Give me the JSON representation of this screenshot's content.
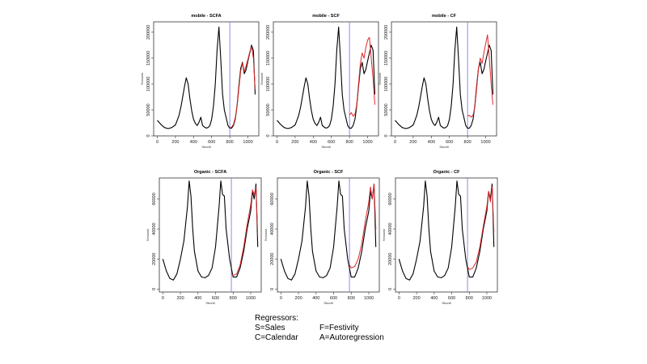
{
  "x_ticks": [
    0,
    200,
    400,
    600,
    800,
    1000
  ],
  "xlabel": "Sboriti",
  "ylabel": "Sessioni",
  "chart_data": [
    {
      "type": "line",
      "title": "mobile  -  SCFA",
      "ylim": [
        0,
        220000
      ],
      "xlim": [
        -40,
        1120
      ],
      "y_ticks": [
        0,
        50000,
        100000,
        150000,
        200000
      ],
      "cutoff_x": 800,
      "series": [
        {
          "role": "actual",
          "x": [
            0,
            40,
            80,
            120,
            160,
            200,
            220,
            240,
            260,
            280,
            300,
            320,
            340,
            360,
            380,
            400,
            420,
            440,
            460,
            480,
            500,
            520,
            540,
            560,
            580,
            600,
            620,
            640,
            660,
            680,
            700,
            720,
            740,
            760,
            780,
            800,
            820,
            840,
            860,
            880,
            900,
            920,
            940,
            960,
            980,
            1000,
            1020,
            1040,
            1060,
            1080
          ],
          "values": [
            30000,
            22000,
            16000,
            14000,
            16000,
            21000,
            30000,
            40000,
            55000,
            75000,
            95000,
            112000,
            100000,
            72000,
            48000,
            32000,
            24000,
            20000,
            26000,
            36000,
            20000,
            17000,
            15000,
            16000,
            20000,
            32000,
            58000,
            100000,
            165000,
            210000,
            150000,
            80000,
            50000,
            35000,
            20000,
            15000,
            15000,
            20000,
            32000,
            58000,
            95000,
            130000,
            142000,
            120000,
            128000,
            145000,
            160000,
            175000,
            165000,
            80000
          ]
        },
        {
          "role": "forecast",
          "x": [
            800,
            820,
            840,
            860,
            880,
            900,
            920,
            940,
            960,
            980,
            1000,
            1020,
            1040,
            1060,
            1080
          ],
          "values": [
            15000,
            17000,
            22000,
            35000,
            56000,
            90000,
            125000,
            140000,
            125000,
            135000,
            148000,
            162000,
            172000,
            150000,
            90000
          ]
        }
      ]
    },
    {
      "type": "line",
      "title": "mobile  -  SCF",
      "ylim": [
        0,
        220000
      ],
      "xlim": [
        -40,
        1120
      ],
      "y_ticks": [
        0,
        50000,
        100000,
        150000,
        200000
      ],
      "cutoff_x": 800,
      "series": [
        {
          "role": "actual",
          "x": [
            0,
            40,
            80,
            120,
            160,
            200,
            220,
            240,
            260,
            280,
            300,
            320,
            340,
            360,
            380,
            400,
            420,
            440,
            460,
            480,
            500,
            520,
            540,
            560,
            580,
            600,
            620,
            640,
            660,
            680,
            700,
            720,
            740,
            760,
            780,
            800,
            820,
            840,
            860,
            880,
            900,
            920,
            940,
            960,
            980,
            1000,
            1020,
            1040,
            1060,
            1080
          ],
          "values": [
            30000,
            22000,
            16000,
            14000,
            16000,
            21000,
            30000,
            40000,
            55000,
            75000,
            95000,
            112000,
            100000,
            72000,
            48000,
            32000,
            24000,
            20000,
            26000,
            36000,
            20000,
            17000,
            15000,
            16000,
            20000,
            32000,
            58000,
            100000,
            165000,
            210000,
            150000,
            80000,
            50000,
            35000,
            20000,
            15000,
            15000,
            20000,
            32000,
            58000,
            95000,
            130000,
            142000,
            120000,
            128000,
            145000,
            160000,
            175000,
            165000,
            80000
          ]
        },
        {
          "role": "forecast",
          "x": [
            800,
            820,
            840,
            860,
            880,
            900,
            920,
            940,
            960,
            980,
            1000,
            1020,
            1040,
            1060,
            1080
          ],
          "values": [
            40000,
            45000,
            38000,
            42000,
            60000,
            100000,
            140000,
            160000,
            150000,
            170000,
            185000,
            190000,
            150000,
            110000,
            60000
          ]
        }
      ]
    },
    {
      "type": "line",
      "title": "mobile  -  CF",
      "ylim": [
        0,
        220000
      ],
      "xlim": [
        -40,
        1120
      ],
      "y_ticks": [
        0,
        50000,
        100000,
        150000,
        200000
      ],
      "cutoff_x": 800,
      "series": [
        {
          "role": "actual",
          "x": [
            0,
            40,
            80,
            120,
            160,
            200,
            220,
            240,
            260,
            280,
            300,
            320,
            340,
            360,
            380,
            400,
            420,
            440,
            460,
            480,
            500,
            520,
            540,
            560,
            580,
            600,
            620,
            640,
            660,
            680,
            700,
            720,
            740,
            760,
            780,
            800,
            820,
            840,
            860,
            880,
            900,
            920,
            940,
            960,
            980,
            1000,
            1020,
            1040,
            1060,
            1080
          ],
          "values": [
            30000,
            22000,
            16000,
            14000,
            16000,
            21000,
            30000,
            40000,
            55000,
            75000,
            95000,
            112000,
            100000,
            72000,
            48000,
            32000,
            24000,
            20000,
            26000,
            36000,
            20000,
            17000,
            15000,
            16000,
            20000,
            32000,
            58000,
            100000,
            165000,
            210000,
            150000,
            80000,
            50000,
            35000,
            20000,
            15000,
            15000,
            20000,
            32000,
            58000,
            95000,
            130000,
            142000,
            120000,
            128000,
            145000,
            160000,
            175000,
            165000,
            80000
          ]
        },
        {
          "role": "forecast",
          "x": [
            800,
            820,
            840,
            860,
            880,
            900,
            920,
            940,
            960,
            980,
            1000,
            1020,
            1040,
            1060,
            1080
          ],
          "values": [
            38000,
            40000,
            36000,
            40000,
            55000,
            90000,
            130000,
            150000,
            140000,
            160000,
            178000,
            195000,
            150000,
            100000,
            60000
          ]
        }
      ]
    },
    {
      "type": "line",
      "title": "Organic  -  SCFA",
      "ylim": [
        -2000,
        74000
      ],
      "xlim": [
        -40,
        1120
      ],
      "y_ticks": [
        0,
        20000,
        40000,
        60000
      ],
      "cutoff_x": 780,
      "series": [
        {
          "role": "actual",
          "x": [
            0,
            40,
            80,
            120,
            160,
            200,
            240,
            280,
            300,
            320,
            340,
            360,
            400,
            440,
            480,
            520,
            560,
            600,
            640,
            660,
            680,
            700,
            720,
            760,
            800,
            840,
            880,
            920,
            960,
            1000,
            1020,
            1040,
            1060,
            1080
          ],
          "values": [
            20000,
            12000,
            7000,
            6000,
            10000,
            20000,
            32000,
            55000,
            72000,
            62000,
            40000,
            25000,
            12000,
            8000,
            7500,
            9000,
            14000,
            28000,
            55000,
            72000,
            63000,
            62000,
            40000,
            20000,
            8000,
            8000,
            14000,
            25000,
            40000,
            52000,
            65000,
            60000,
            70000,
            28000
          ]
        },
        {
          "role": "forecast",
          "x": [
            780,
            800,
            840,
            880,
            920,
            960,
            1000,
            1020,
            1040,
            1060,
            1080
          ],
          "values": [
            10000,
            9000,
            10000,
            16000,
            28000,
            43000,
            56000,
            66000,
            63000,
            68000,
            35000
          ]
        }
      ]
    },
    {
      "type": "line",
      "title": "Organic  -  SCF",
      "ylim": [
        -2000,
        74000
      ],
      "xlim": [
        -40,
        1120
      ],
      "y_ticks": [
        0,
        20000,
        40000,
        60000
      ],
      "cutoff_x": 780,
      "series": [
        {
          "role": "actual",
          "x": [
            0,
            40,
            80,
            120,
            160,
            200,
            240,
            280,
            300,
            320,
            340,
            360,
            400,
            440,
            480,
            520,
            560,
            600,
            640,
            660,
            680,
            700,
            720,
            760,
            800,
            840,
            880,
            920,
            960,
            1000,
            1020,
            1040,
            1060,
            1080
          ],
          "values": [
            20000,
            12000,
            7000,
            6000,
            10000,
            20000,
            32000,
            55000,
            72000,
            62000,
            40000,
            25000,
            12000,
            8000,
            7500,
            9000,
            14000,
            28000,
            55000,
            72000,
            63000,
            62000,
            40000,
            20000,
            8000,
            8000,
            14000,
            25000,
            40000,
            52000,
            65000,
            60000,
            70000,
            28000
          ]
        },
        {
          "role": "forecast",
          "x": [
            780,
            800,
            840,
            880,
            920,
            960,
            1000,
            1020,
            1040,
            1060,
            1080
          ],
          "values": [
            16000,
            14000,
            15000,
            20000,
            30000,
            45000,
            58000,
            68000,
            60000,
            70000,
            40000
          ]
        }
      ]
    },
    {
      "type": "line",
      "title": "Organic  -  CF",
      "ylim": [
        -2000,
        74000
      ],
      "xlim": [
        -40,
        1120
      ],
      "y_ticks": [
        0,
        20000,
        40000,
        60000
      ],
      "cutoff_x": 780,
      "series": [
        {
          "role": "actual",
          "x": [
            0,
            40,
            80,
            120,
            160,
            200,
            240,
            280,
            300,
            320,
            340,
            360,
            400,
            440,
            480,
            520,
            560,
            600,
            640,
            660,
            680,
            700,
            720,
            760,
            800,
            840,
            880,
            920,
            960,
            1000,
            1020,
            1040,
            1060,
            1080
          ],
          "values": [
            20000,
            12000,
            7000,
            6000,
            10000,
            20000,
            32000,
            55000,
            72000,
            62000,
            40000,
            25000,
            12000,
            8000,
            7500,
            9000,
            14000,
            28000,
            55000,
            72000,
            63000,
            62000,
            40000,
            20000,
            8000,
            8000,
            14000,
            25000,
            40000,
            52000,
            65000,
            60000,
            70000,
            28000
          ]
        },
        {
          "role": "forecast",
          "x": [
            780,
            800,
            840,
            880,
            920,
            960,
            1000,
            1020,
            1040,
            1060,
            1080
          ],
          "values": [
            15000,
            13000,
            14000,
            18000,
            28000,
            42000,
            55000,
            65000,
            58000,
            68000,
            38000
          ]
        }
      ]
    }
  ],
  "colors": {
    "actual": "#000000",
    "forecast": "#e0262a",
    "cutoff": "#6f6fe8",
    "axis": "#333333"
  },
  "legend": {
    "heading": "Regressors:",
    "items": [
      "S=Sales",
      "C=Calendar",
      "F=Festivity",
      "A=Autoregression"
    ]
  }
}
